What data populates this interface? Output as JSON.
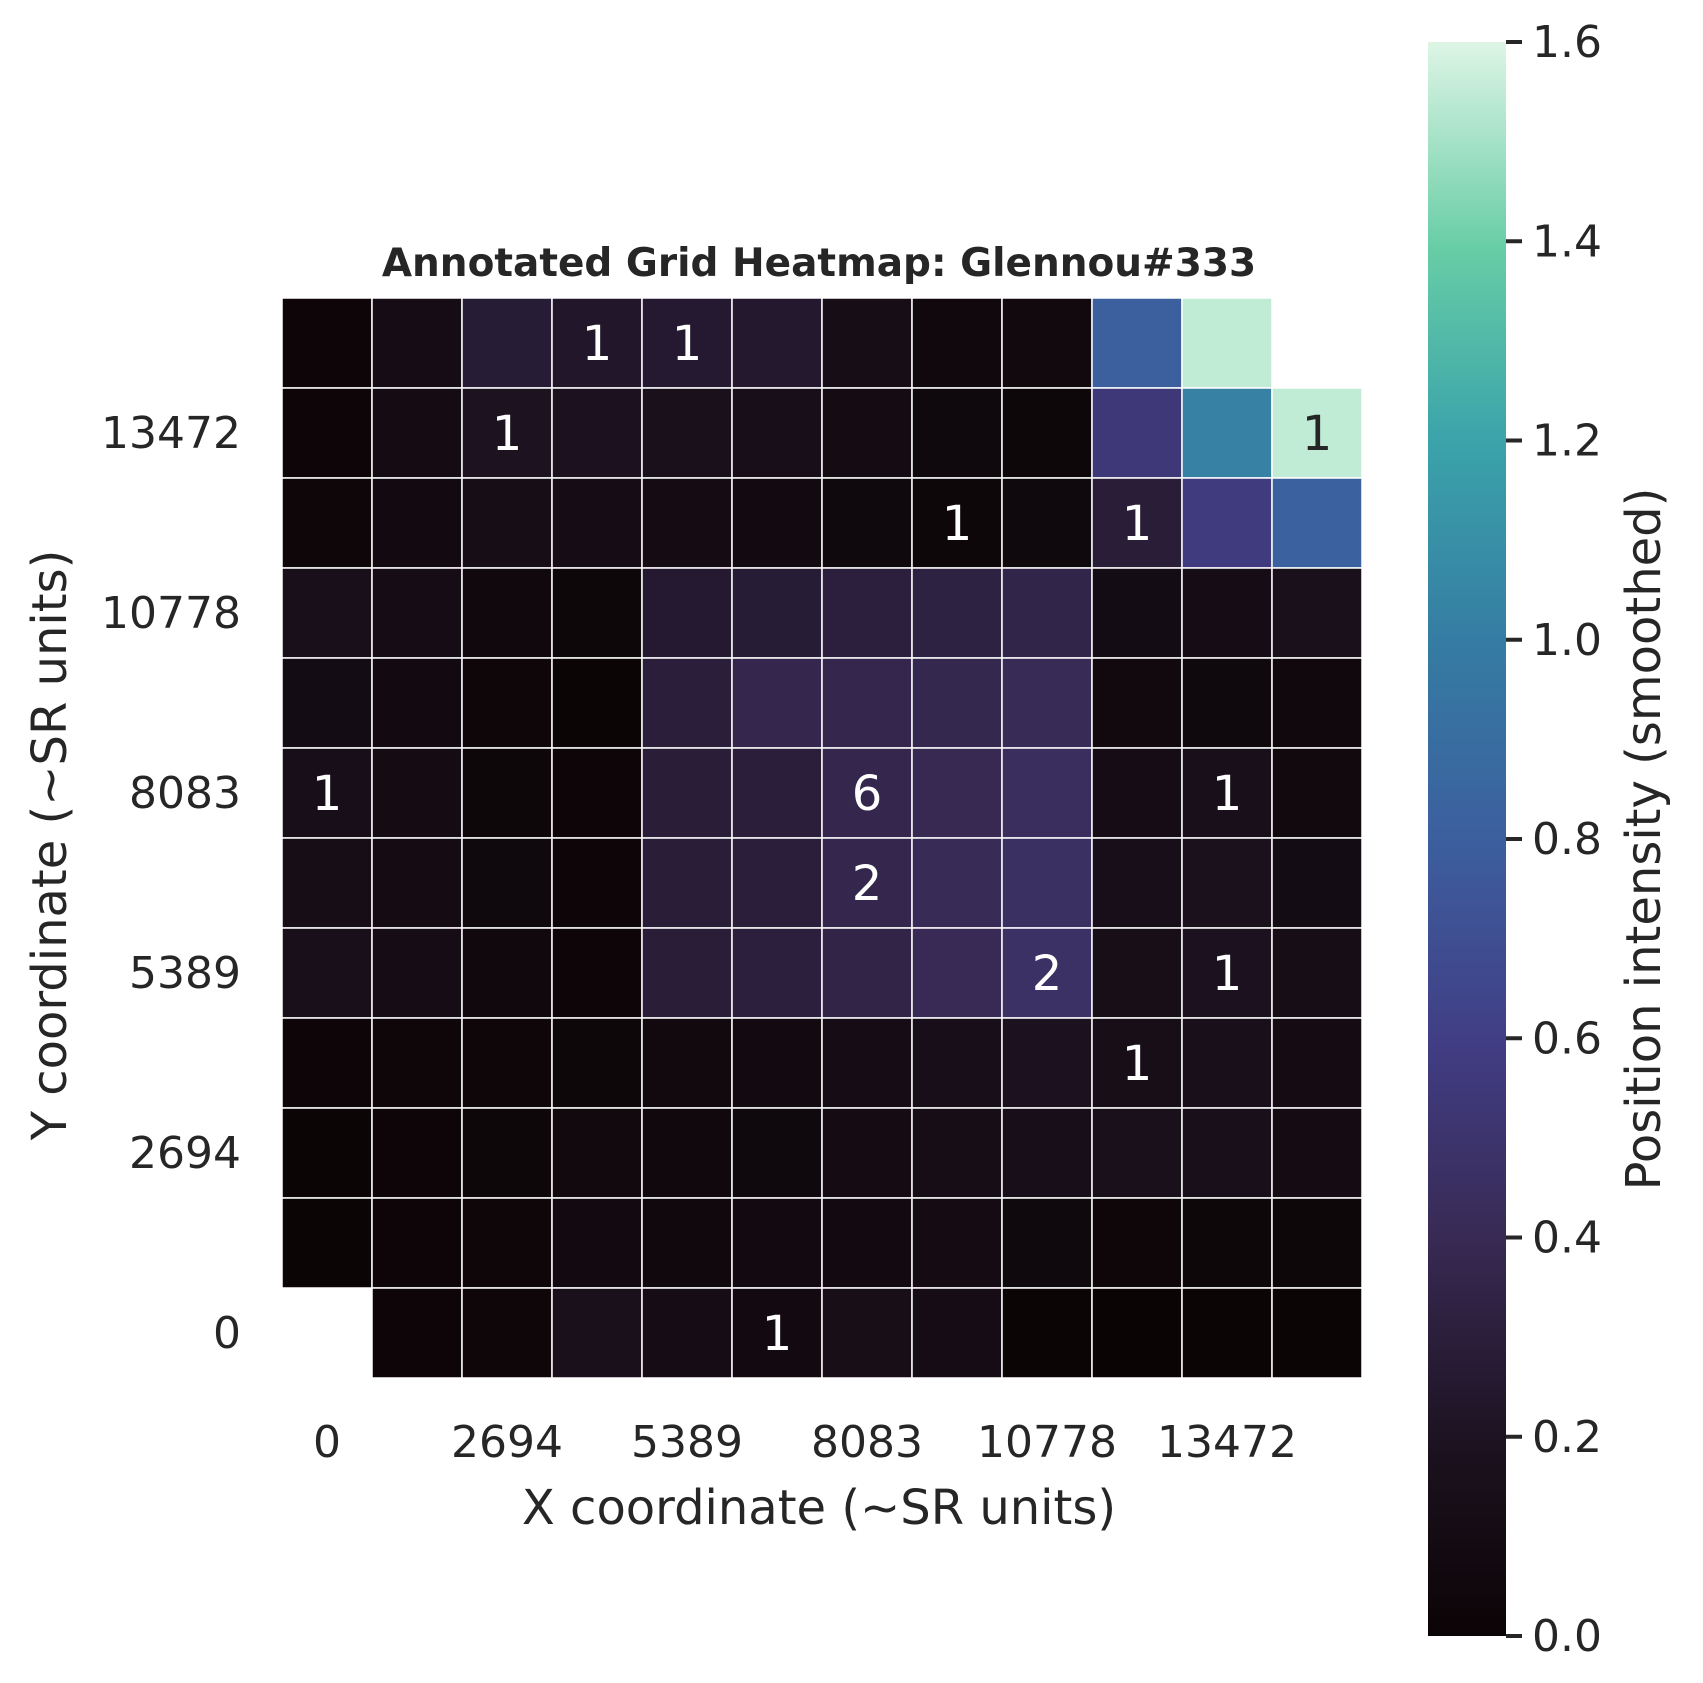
{
  "chart_data": {
    "type": "heatmap",
    "title": "Annotated Grid Heatmap: Glennou#333",
    "xlabel": "X coordinate (~SR units)",
    "ylabel": "Y coordinate (~SR units)",
    "colorbar_label": "Position intensity (smoothed)",
    "colormap": "mako",
    "vmin": 0.0,
    "vmax": 1.6,
    "colorbar_ticks": [
      "0.0",
      "0.2",
      "0.4",
      "0.6",
      "0.8",
      "1.0",
      "1.2",
      "1.4",
      "1.6"
    ],
    "colorbar_tick_values": [
      0.0,
      0.2,
      0.4,
      0.6,
      0.8,
      1.0,
      1.2,
      1.4,
      1.6
    ],
    "x_tick_labels": [
      "0",
      "2694",
      "5389",
      "8083",
      "10778",
      "13472"
    ],
    "x_tick_columns": [
      0,
      2,
      4,
      6,
      8,
      10
    ],
    "y_tick_labels": [
      "13472",
      "10778",
      "8083",
      "5389",
      "2694",
      "0"
    ],
    "y_tick_rows": [
      1,
      3,
      5,
      7,
      9,
      11
    ],
    "rows_top_to_bottom": [
      [
        0.02,
        0.12,
        0.28,
        0.24,
        0.26,
        0.25,
        0.13,
        0.06,
        0.07,
        0.8,
        1.55,
        null
      ],
      [
        0.02,
        0.1,
        0.2,
        0.19,
        0.17,
        0.15,
        0.1,
        0.05,
        0.04,
        0.55,
        1.03,
        1.55
      ],
      [
        0.03,
        0.09,
        0.13,
        0.12,
        0.1,
        0.08,
        0.05,
        0.04,
        0.05,
        0.29,
        0.58,
        0.82
      ],
      [
        0.16,
        0.12,
        0.06,
        0.04,
        0.26,
        0.28,
        0.31,
        0.33,
        0.36,
        0.11,
        0.12,
        0.17
      ],
      [
        0.11,
        0.08,
        0.03,
        0.01,
        0.3,
        0.37,
        0.37,
        0.38,
        0.41,
        0.07,
        0.05,
        0.06
      ],
      [
        0.15,
        0.1,
        0.04,
        0.02,
        0.29,
        0.3,
        0.37,
        0.39,
        0.44,
        0.12,
        0.16,
        0.07
      ],
      [
        0.13,
        0.1,
        0.05,
        0.02,
        0.29,
        0.3,
        0.37,
        0.41,
        0.46,
        0.15,
        0.18,
        0.11
      ],
      [
        0.16,
        0.12,
        0.06,
        0.02,
        0.29,
        0.31,
        0.35,
        0.4,
        0.47,
        0.14,
        0.19,
        0.13
      ],
      [
        0.02,
        0.03,
        0.03,
        0.04,
        0.07,
        0.08,
        0.12,
        0.15,
        0.19,
        0.14,
        0.16,
        0.1
      ],
      [
        0.01,
        0.02,
        0.04,
        0.07,
        0.06,
        0.05,
        0.1,
        0.13,
        0.15,
        0.17,
        0.16,
        0.1
      ],
      [
        0.01,
        0.02,
        0.03,
        0.09,
        0.06,
        0.08,
        0.09,
        0.1,
        0.05,
        0.03,
        0.04,
        0.04
      ],
      [
        null,
        0.02,
        0.03,
        0.17,
        0.12,
        0.09,
        0.14,
        0.12,
        0.01,
        0.0,
        0.01,
        0.01
      ]
    ],
    "annotations": [
      {
        "row": 0,
        "col": 3,
        "text": "1"
      },
      {
        "row": 0,
        "col": 4,
        "text": "1"
      },
      {
        "row": 1,
        "col": 2,
        "text": "1"
      },
      {
        "row": 1,
        "col": 11,
        "text": "1"
      },
      {
        "row": 2,
        "col": 7,
        "text": "1"
      },
      {
        "row": 2,
        "col": 9,
        "text": "1"
      },
      {
        "row": 5,
        "col": 0,
        "text": "1"
      },
      {
        "row": 5,
        "col": 6,
        "text": "6"
      },
      {
        "row": 5,
        "col": 10,
        "text": "1"
      },
      {
        "row": 6,
        "col": 6,
        "text": "2"
      },
      {
        "row": 7,
        "col": 8,
        "text": "2"
      },
      {
        "row": 7,
        "col": 10,
        "text": "1"
      },
      {
        "row": 8,
        "col": 9,
        "text": "1"
      },
      {
        "row": 11,
        "col": 5,
        "text": "1"
      }
    ]
  }
}
